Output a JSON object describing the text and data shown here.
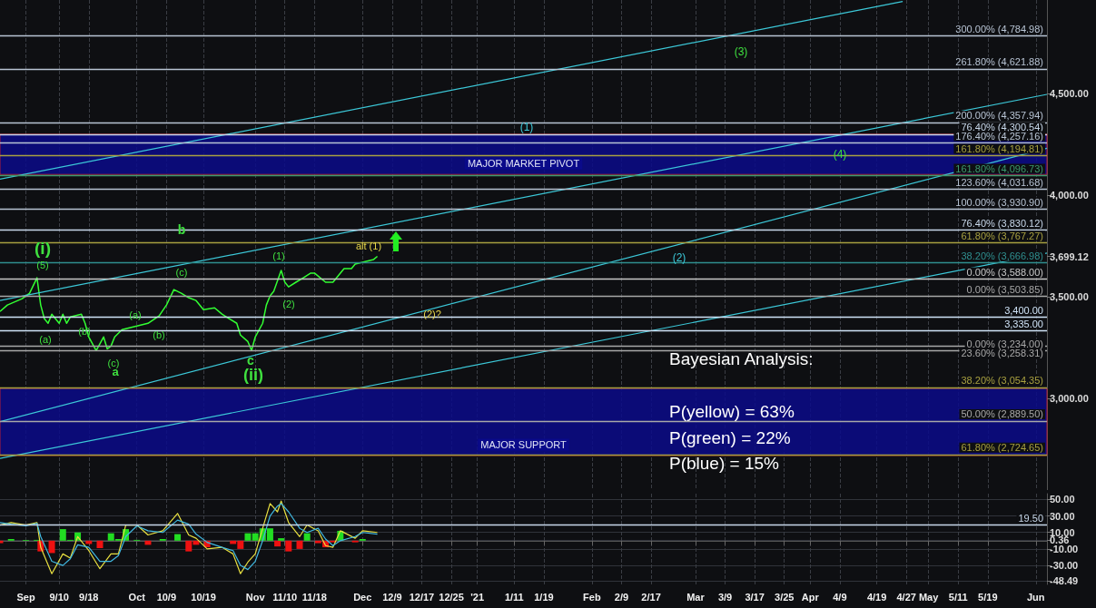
{
  "chart_data": [
    {
      "type": "line",
      "marker": "none",
      "line_style": "solid",
      "grid": "x",
      "tick_labels": "y",
      "xlim": [
        "2020-08-25",
        "2021-06-04"
      ],
      "xticks": [
        "2020-09-01",
        "2020-09-10",
        "2020-09-18",
        "2020-10-01",
        "2020-10-09",
        "2020-10-19",
        "2020-11-02",
        "2020-11-10",
        "2020-11-18",
        "2020-12-01",
        "2020-12-09",
        "2020-12-17",
        "2020-12-25",
        "2021-01-01",
        "2021-01-11",
        "2021-01-19",
        "2021-02-01",
        "2021-02-09",
        "2021-02-17",
        "2021-03-01",
        "2021-03-09",
        "2021-03-17",
        "2021-03-25",
        "2021-04-01",
        "2021-04-09",
        "2021-04-19",
        "2021-04-27",
        "2021-05-03",
        "2021-05-11",
        "2021-05-19",
        "2021-06-01"
      ],
      "ylim": [
        2550,
        4960
      ],
      "yticks": [
        {
          "value": 3000,
          "label": "3,000.00"
        },
        {
          "value": 3500,
          "label": "3,500.00"
        },
        {
          "value": 4000,
          "label": "4,000.00"
        },
        {
          "value": 4500,
          "label": "4,500.00"
        },
        {
          "value": 3699.12,
          "label": "3,699.12"
        }
      ],
      "series": [
        {
          "color": "#33ff33",
          "x": [
            "2020-08-25",
            "2020-08-27",
            "2020-08-31",
            "2020-09-02",
            "2020-09-04",
            "2020-09-05",
            "2020-09-06",
            "2020-09-07",
            "2020-09-08",
            "2020-09-10",
            "2020-09-11",
            "2020-09-12",
            "2020-09-13",
            "2020-09-16",
            "2020-09-17",
            "2020-09-18",
            "2020-09-20",
            "2020-09-22",
            "2020-09-23",
            "2020-09-24",
            "2020-09-25",
            "2020-09-27",
            "2020-09-29",
            "2020-10-02",
            "2020-10-04",
            "2020-10-07",
            "2020-10-09",
            "2020-10-11",
            "2020-10-13",
            "2020-10-15",
            "2020-10-17",
            "2020-10-19",
            "2020-10-22",
            "2020-10-24",
            "2020-10-26",
            "2020-10-28",
            "2020-10-29",
            "2020-10-31",
            "2020-11-01",
            "2020-11-02",
            "2020-11-04",
            "2020-11-05",
            "2020-11-06",
            "2020-11-07",
            "2020-11-09",
            "2020-11-10",
            "2020-11-11",
            "2020-11-13",
            "2020-11-15",
            "2020-11-17",
            "2020-11-18",
            "2020-11-21",
            "2020-11-23",
            "2020-11-26",
            "2020-11-28",
            "2020-11-29",
            "2020-12-02",
            "2020-12-04",
            "2020-12-05"
          ],
          "values": [
            3428,
            3460,
            3491,
            3518,
            3594,
            3460,
            3392,
            3370,
            3415,
            3370,
            3415,
            3370,
            3401,
            3415,
            3370,
            3303,
            3236,
            3303,
            3244,
            3258,
            3303,
            3339,
            3348,
            3361,
            3370,
            3406,
            3460,
            3536,
            3518,
            3496,
            3482,
            3437,
            3446,
            3415,
            3392,
            3370,
            3312,
            3280,
            3236,
            3303,
            3370,
            3460,
            3505,
            3527,
            3630,
            3572,
            3549,
            3572,
            3594,
            3617,
            3617,
            3572,
            3572,
            3639,
            3639,
            3661,
            3675,
            3684,
            3699.12
          ]
        },
        {
          "color": "#3cc8d8",
          "x": [
            "2020-08-25",
            "2021-04-26"
          ],
          "values": [
            4079,
            4953
          ]
        },
        {
          "color": "#3cc8d8",
          "x": [
            "2020-08-25",
            "2021-06-04"
          ],
          "values": [
            3482,
            4496
          ]
        },
        {
          "color": "#3cc8d8",
          "x": [
            "2020-08-25",
            "2021-06-04"
          ],
          "values": [
            2886,
            4231
          ]
        },
        {
          "color": "#3cc8d8",
          "x": [
            "2020-08-25",
            "2021-06-04"
          ],
          "values": [
            2706,
            3715
          ]
        }
      ],
      "ref_lines": [
        {
          "axis": "y",
          "value": 4784.98,
          "label": "300.00% (4,784.98)",
          "color": "#b8c4d4"
        },
        {
          "axis": "y",
          "value": 4621.88,
          "label": "261.80% (4,621.88)",
          "color": "#b8c4d4"
        },
        {
          "axis": "y",
          "value": 4357.94,
          "label": "200.00% (4,357.94)",
          "color": "#b8c4d4"
        },
        {
          "axis": "y",
          "value": 4300.54,
          "label": "76.40% (4,300.54)",
          "color": "#c8d8ea"
        },
        {
          "axis": "y",
          "value": 4257.16,
          "label": "176.40% (4,257.16)",
          "color": "#b8c4d4"
        },
        {
          "axis": "y",
          "value": 4194.81,
          "label": "161.80% (4,194.81)",
          "color": "#a8a040"
        },
        {
          "axis": "y",
          "value": 4096.73,
          "label": "161.80% (4,096.73)",
          "color": "#3c9a70"
        },
        {
          "axis": "y",
          "value": 4031.68,
          "label": "123.60% (4,031.68)",
          "color": "#b8c4d4"
        },
        {
          "axis": "y",
          "value": 3930.9,
          "label": "100.00% (3,930.90)",
          "color": "#b8c4d4"
        },
        {
          "axis": "y",
          "value": 3830.12,
          "label": "76.40% (3,830.12)",
          "color": "#c8d8ea"
        },
        {
          "axis": "y",
          "value": 3767.27,
          "label": "61.80% (3,767.27)",
          "color": "#a8a040"
        },
        {
          "axis": "y",
          "value": 3666.98,
          "label": "38.20% (3,666.98)",
          "color": "#2f8f8f"
        },
        {
          "axis": "y",
          "value": 3588,
          "label": "0.00% (3,588.00)",
          "color": "#c8c8c8"
        },
        {
          "axis": "y",
          "value": 3503.85,
          "label": "0.00% (3,503.85)",
          "color": "#a8a8a8"
        },
        {
          "axis": "y",
          "value": 3400,
          "label": "3,400.00",
          "color": "#d0e4f8"
        },
        {
          "axis": "y",
          "value": 3335,
          "label": "3,335.00",
          "color": "#d0e4f8"
        },
        {
          "axis": "y",
          "value": 3258.31,
          "label": "23.60% (3,258.31)",
          "color": "#a8a8a8"
        },
        {
          "axis": "y",
          "value": 3234,
          "label": "0.00% (3,234.00)",
          "color": "#a8a8a8"
        },
        {
          "axis": "y",
          "value": 3054.35,
          "label": "38.20% (3,054.35)",
          "color": "#a8a040"
        },
        {
          "axis": "y",
          "value": 2889.5,
          "label": "50.00% (2,889.50)",
          "color": "#a8a8a8"
        },
        {
          "axis": "y",
          "value": 2724.65,
          "label": "61.80% (2,724.65)",
          "color": "#a8a040"
        }
      ],
      "bands": [
        {
          "axis": "y",
          "from": 4102,
          "to": 4300,
          "label": "MAJOR MARKET PIVOT",
          "color": "#0a0a8a"
        },
        {
          "axis": "y",
          "from": 2720,
          "to": 3050,
          "label": "MAJOR SUPPORT",
          "color": "#0a0a8a"
        }
      ],
      "annotations": [
        "(i)",
        "(5)",
        "(a)",
        "(b)",
        "(c)",
        "a",
        "(a)",
        "(b)",
        "b",
        "(c)",
        "c",
        "(ii)",
        "(1)",
        "(2)",
        "alt (1)",
        "(2)?",
        "(1)",
        "(2)",
        "(3)",
        "(4)",
        "Bayesian Analysis:",
        "P(yellow) = 63%",
        "P(green) = 22%",
        "P(blue) = 15%"
      ]
    },
    {
      "type": "line",
      "marker": "none",
      "line_style": "solid",
      "grid": true,
      "xlim": [
        "2020-08-25",
        "2021-06-04"
      ],
      "xticks": [
        {
          "value": "2020-09-01",
          "label": "Sep"
        },
        {
          "value": "2020-09-10",
          "label": "9/10"
        },
        {
          "value": "2020-09-18",
          "label": "9/18"
        },
        {
          "value": "2020-10-01",
          "label": "Oct"
        },
        {
          "value": "2020-10-09",
          "label": "10/9"
        },
        {
          "value": "2020-10-19",
          "label": "10/19"
        },
        {
          "value": "2020-11-02",
          "label": "Nov"
        },
        {
          "value": "2020-11-10",
          "label": "11/10"
        },
        {
          "value": "2020-11-18",
          "label": "11/18"
        },
        {
          "value": "2020-12-01",
          "label": "Dec"
        },
        {
          "value": "2020-12-09",
          "label": "12/9"
        },
        {
          "value": "2020-12-17",
          "label": "12/17"
        },
        {
          "value": "2020-12-25",
          "label": "12/25"
        },
        {
          "value": "2021-01-01",
          "label": "'21"
        },
        {
          "value": "2021-01-11",
          "label": "1/11"
        },
        {
          "value": "2021-01-19",
          "label": "1/19"
        },
        {
          "value": "2021-02-01",
          "label": "Feb"
        },
        {
          "value": "2021-02-09",
          "label": "2/9"
        },
        {
          "value": "2021-02-17",
          "label": "2/17"
        },
        {
          "value": "2021-03-01",
          "label": "Mar"
        },
        {
          "value": "2021-03-09",
          "label": "3/9"
        },
        {
          "value": "2021-03-17",
          "label": "3/17"
        },
        {
          "value": "2021-03-25",
          "label": "3/25"
        },
        {
          "value": "2021-04-01",
          "label": "Apr"
        },
        {
          "value": "2021-04-09",
          "label": "4/9"
        },
        {
          "value": "2021-04-19",
          "label": "4/19"
        },
        {
          "value": "2021-04-27",
          "label": "4/27"
        },
        {
          "value": "2021-05-03",
          "label": "May"
        },
        {
          "value": "2021-05-11",
          "label": "5/11"
        },
        {
          "value": "2021-05-19",
          "label": "5/19"
        },
        {
          "value": "2021-06-01",
          "label": "Jun"
        }
      ],
      "ylim": [
        -53,
        57
      ],
      "yticks": [
        {
          "value": 50,
          "label": "50.00"
        },
        {
          "value": 30,
          "label": "30.00"
        },
        {
          "value": 10,
          "label": "10.00"
        },
        {
          "value": -10,
          "label": "-10.00"
        },
        {
          "value": -30,
          "label": "-30.00"
        },
        {
          "value": -48.49,
          "label": "-48.49"
        },
        {
          "value": 0.36,
          "label": "0.36"
        }
      ],
      "ref_lines": [
        {
          "axis": "y",
          "value": 19.5,
          "label": "19.50",
          "color": "#c8d8ea"
        }
      ],
      "series": [
        {
          "type": "bar",
          "x": [
            "2020-08-25",
            "2020-08-28",
            "2020-09-01",
            "2020-09-04",
            "2020-09-05",
            "2020-09-08",
            "2020-09-11",
            "2020-09-13",
            "2020-09-15",
            "2020-09-18",
            "2020-09-21",
            "2020-09-24",
            "2020-09-26",
            "2020-09-28",
            "2020-10-01",
            "2020-10-04",
            "2020-10-08",
            "2020-10-12",
            "2020-10-15",
            "2020-10-17",
            "2020-10-20",
            "2020-10-24",
            "2020-10-27",
            "2020-10-29",
            "2020-10-31",
            "2020-11-02",
            "2020-11-04",
            "2020-11-06",
            "2020-11-08",
            "2020-11-09",
            "2020-11-11",
            "2020-11-14",
            "2020-11-16",
            "2020-11-19",
            "2020-11-21",
            "2020-11-23",
            "2020-11-25",
            "2020-11-29",
            "2020-12-01"
          ],
          "values": [
            -3,
            2,
            1,
            1,
            -13,
            -15,
            14,
            1,
            10,
            -4,
            -9,
            9,
            2,
            14,
            1,
            -5,
            2,
            8,
            -13,
            -5,
            -8,
            0,
            -4,
            -10,
            9,
            9,
            15,
            15,
            -7,
            3,
            -13,
            -10,
            9,
            -3,
            -8,
            -2,
            12,
            -2,
            2
          ],
          "colors": [
            "#ee1111",
            "#22dd22",
            "#22dd22",
            "#22dd22",
            "#ee1111",
            "#ee1111",
            "#22dd22",
            "#22dd22",
            "#22dd22",
            "#ee1111",
            "#ee1111",
            "#22dd22",
            "#22dd22",
            "#22dd22",
            "#22dd22",
            "#ee1111",
            "#22dd22",
            "#22dd22",
            "#ee1111",
            "#ee1111",
            "#ee1111",
            "#22dd22",
            "#ee1111",
            "#ee1111",
            "#22dd22",
            "#22dd22",
            "#22dd22",
            "#22dd22",
            "#ee1111",
            "#22dd22",
            "#ee1111",
            "#ee1111",
            "#22dd22",
            "#ee1111",
            "#ee1111",
            "#ee1111",
            "#22dd22",
            "#ee1111",
            "#22dd22"
          ]
        },
        {
          "color": "#e8e040",
          "x": [
            "2020-08-25",
            "2020-08-28",
            "2020-09-01",
            "2020-09-04",
            "2020-09-05",
            "2020-09-08",
            "2020-09-11",
            "2020-09-13",
            "2020-09-15",
            "2020-09-18",
            "2020-09-21",
            "2020-09-24",
            "2020-09-26",
            "2020-09-28",
            "2020-10-01",
            "2020-10-04",
            "2020-10-08",
            "2020-10-12",
            "2020-10-15",
            "2020-10-17",
            "2020-10-20",
            "2020-10-24",
            "2020-10-27",
            "2020-10-29",
            "2020-10-31",
            "2020-11-02",
            "2020-11-04",
            "2020-11-06",
            "2020-11-08",
            "2020-11-09",
            "2020-11-11",
            "2020-11-14",
            "2020-11-16",
            "2020-11-19",
            "2020-11-21",
            "2020-11-23",
            "2020-11-25",
            "2020-11-29",
            "2020-12-01",
            "2020-12-05"
          ],
          "values": [
            19,
            22,
            19,
            22,
            -8,
            -40,
            -16,
            -21,
            5,
            -12,
            -34,
            -16,
            -16,
            19,
            19,
            7,
            12,
            33,
            7,
            3,
            -10,
            -8,
            -16,
            -40,
            -26,
            -16,
            15,
            45,
            35,
            48,
            22,
            5,
            19,
            12,
            -6,
            -8,
            12,
            3,
            12,
            10
          ]
        },
        {
          "color": "#40b8e0",
          "x": [
            "2020-08-25",
            "2020-08-28",
            "2020-09-01",
            "2020-09-04",
            "2020-09-05",
            "2020-09-08",
            "2020-09-11",
            "2020-09-13",
            "2020-09-15",
            "2020-09-18",
            "2020-09-21",
            "2020-09-24",
            "2020-09-26",
            "2020-09-28",
            "2020-10-01",
            "2020-10-04",
            "2020-10-08",
            "2020-10-12",
            "2020-10-15",
            "2020-10-17",
            "2020-10-20",
            "2020-10-24",
            "2020-10-27",
            "2020-10-29",
            "2020-10-31",
            "2020-11-02",
            "2020-11-04",
            "2020-11-06",
            "2020-11-08",
            "2020-11-09",
            "2020-11-11",
            "2020-11-14",
            "2020-11-16",
            "2020-11-19",
            "2020-11-21",
            "2020-11-23",
            "2020-11-25",
            "2020-11-29",
            "2020-12-01",
            "2020-12-05"
          ],
          "values": [
            22,
            20,
            18,
            21,
            5,
            -25,
            -30,
            -22,
            -5,
            -8,
            -25,
            -25,
            -18,
            5,
            18,
            12,
            10,
            25,
            20,
            8,
            -2,
            -8,
            -12,
            -30,
            -35,
            -25,
            0,
            30,
            42,
            45,
            35,
            15,
            10,
            15,
            2,
            -6,
            0,
            5,
            10,
            8
          ]
        }
      ]
    }
  ]
}
